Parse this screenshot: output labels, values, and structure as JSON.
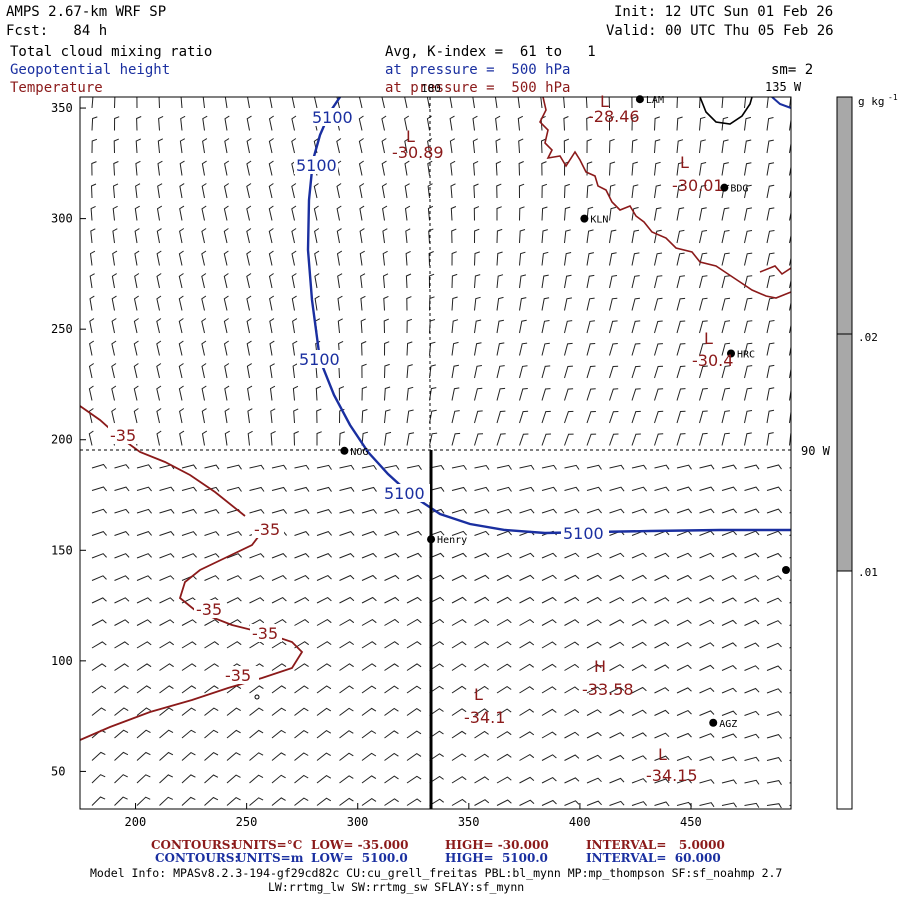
{
  "header": {
    "model": "AMPS 2.67-km WRF SP",
    "fcst": "Fcst:   84 h",
    "init": "Init: 12 UTC Sun 01 Feb 26",
    "valid": "Valid: 00 UTC Thu 05 Feb 26",
    "field1": "Total cloud mixing ratio",
    "field2": "Geopotential height",
    "field3": "Temperature",
    "avg": "Avg, K-index =  61 to   1",
    "pres1": "at pressure =  500 hPa",
    "pres2": "at pressure =  500 hPa",
    "sm": "sm= 2"
  },
  "colors": {
    "blue": "#1a2fa0",
    "red": "#8b1a1a"
  },
  "axes": {
    "x": {
      "min": 175,
      "max": 495,
      "ticks": [
        200,
        250,
        300,
        350,
        400,
        450
      ]
    },
    "y": {
      "min": 33,
      "max": 355,
      "ticks": [
        50,
        100,
        150,
        200,
        250,
        300,
        350
      ]
    }
  },
  "meridians": {
    "lon180": "180",
    "lon135": "135 W",
    "lon90": "90 W"
  },
  "colorbar": {
    "unit": "g kg",
    "unit_exp": "-1",
    "ticks": [
      ".02",
      ".01"
    ]
  },
  "stations": [
    {
      "name": "NOG",
      "x": 294,
      "y": 195
    },
    {
      "name": "Henry",
      "x": 333,
      "y": 155
    },
    {
      "name": "KLN",
      "x": 402,
      "y": 300
    },
    {
      "name": "BDG",
      "x": 465,
      "y": 314
    },
    {
      "name": "HRC",
      "x": 468,
      "y": 239
    },
    {
      "name": "AGZ",
      "x": 460,
      "y": 72
    },
    {
      "name": "LAM",
      "x": 427,
      "y": 354
    }
  ],
  "labels": {
    "height": [
      "5100",
      "5100",
      "5100",
      "5100",
      "5100"
    ],
    "temp": [
      "-35",
      "-35",
      "-35",
      "-35",
      "-35"
    ],
    "lows": [
      {
        "mark": "L",
        "value": "-30.89"
      },
      {
        "mark": "L",
        "value": "-28.46"
      },
      {
        "mark": "L",
        "value": "-30.01"
      },
      {
        "mark": "L",
        "value": "-30.4"
      },
      {
        "mark": "L",
        "value": "-34.1"
      },
      {
        "mark": "L",
        "value": "-34.15"
      }
    ],
    "high": {
      "mark": "H",
      "value": "-33.58"
    }
  },
  "footer": {
    "line1": {
      "label": "CONTOURS:",
      "units": "UNITS=°C",
      "low": "LOW= -35.000",
      "high": "HIGH= -30.000",
      "interval": "INTERVAL=   5.0000"
    },
    "line2": {
      "label": "CONTOURS:",
      "units": "UNITS=m",
      "low": "LOW=  5100.0",
      "high": "HIGH=  5100.0",
      "interval": "INTERVAL=  60.000"
    },
    "model_info": "Model Info: MPASv8.2.3-194-gf29cd82c CU:cu_grell_freitas PBL:bl_mynn MP:mp_thompson SF:sf_noahmp 2.7",
    "model_info2": "LW:rrtmg_lw SW:rrtmg_sw SFLAY:sf_mynn"
  }
}
